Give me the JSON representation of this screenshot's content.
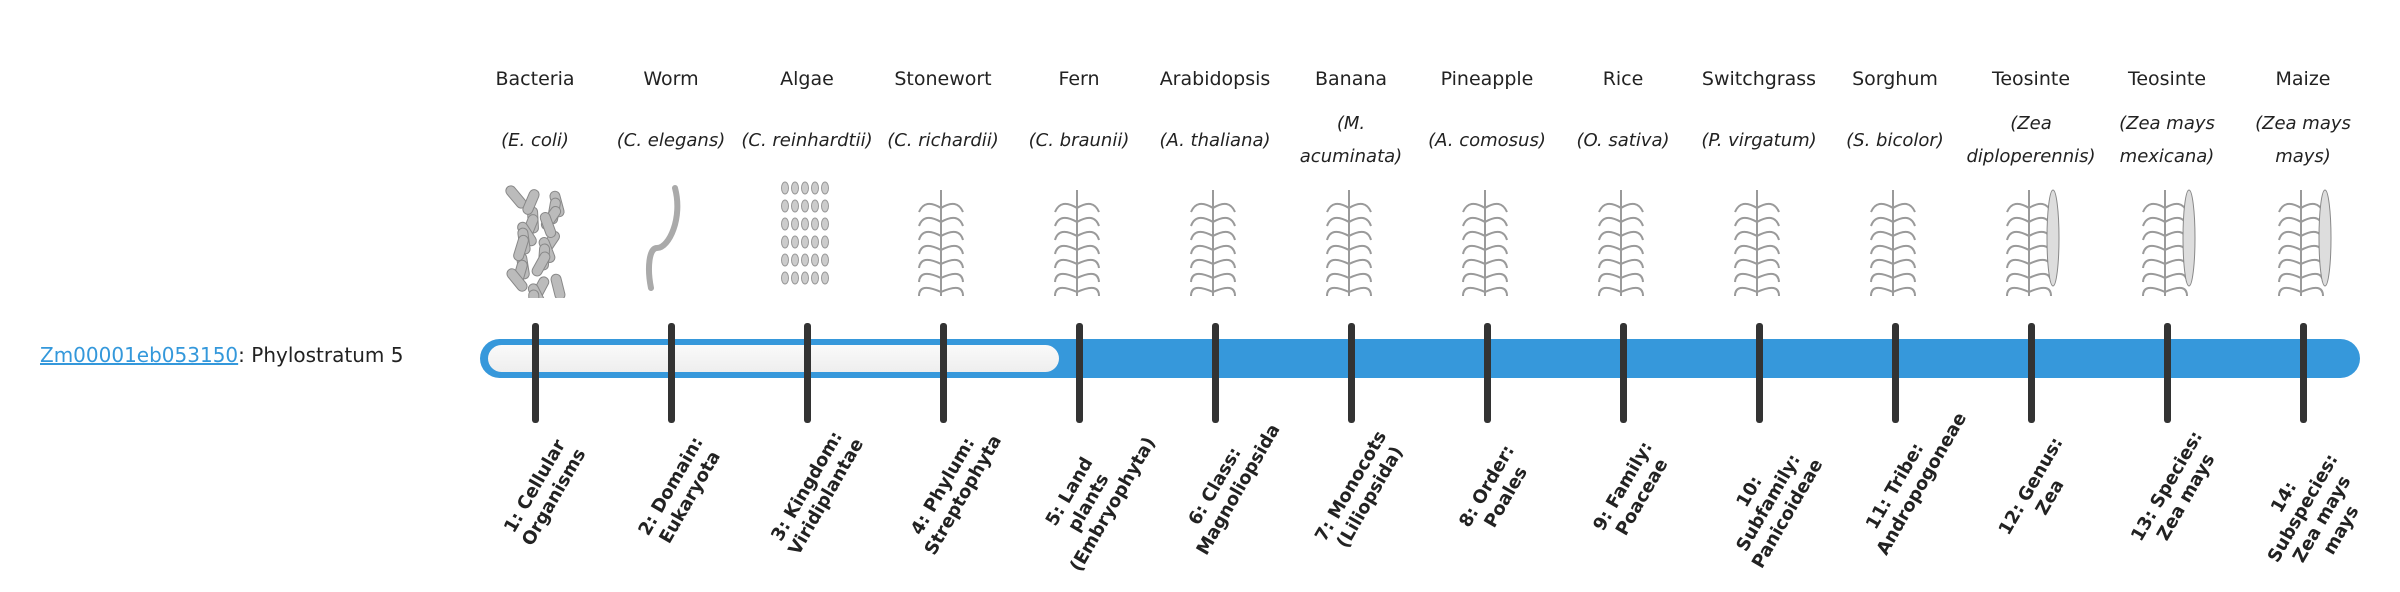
{
  "gene": {
    "id": "Zm00001eb053150",
    "phylostratum": ": Phylostratum 5"
  },
  "progress": {
    "value": 5,
    "max": 14,
    "accent": "#3698db"
  },
  "strata": [
    {
      "name": "Bacteria",
      "species": "(E. coli)",
      "icon": "bacteria-icon",
      "label": "1: Cellular Organisms"
    },
    {
      "name": "Worm",
      "species": "(C. elegans)",
      "icon": "worm-icon",
      "label": "2: Domain: Eukaryota"
    },
    {
      "name": "Algae",
      "species": "(C. reinhardtii)",
      "icon": "algae-icon",
      "label": "3: Kingdom: Viridiplantae"
    },
    {
      "name": "Stonewort",
      "species": "(C. richardii)",
      "icon": "stonewort-icon",
      "label": "4: Phylum: Streptophyta"
    },
    {
      "name": "Fern",
      "species": "(C. braunii)",
      "icon": "fern-icon",
      "label": "5: Land plants (Embryophyta)"
    },
    {
      "name": "Arabidopsis",
      "species": "(A. thaliana)",
      "icon": "arabidopsis-icon",
      "label": "6: Class: Magnoliopsida"
    },
    {
      "name": "Banana",
      "species": "(M. acuminata)",
      "icon": "banana-icon",
      "label": "7: Monocots (Liliopsida)"
    },
    {
      "name": "Pineapple",
      "species": "(A. comosus)",
      "icon": "pineapple-icon",
      "label": "8: Order: Poales"
    },
    {
      "name": "Rice",
      "species": "(O. sativa)",
      "icon": "rice-icon",
      "label": "9: Family: Poaceae"
    },
    {
      "name": "Switchgrass",
      "species": "(P. virgatum)",
      "icon": "switchgrass-icon",
      "label": "10: Subfamily: Panicoideae"
    },
    {
      "name": "Sorghum",
      "species": "(S. bicolor)",
      "icon": "sorghum-icon",
      "label": "11: Tribe: Andropogoneae"
    },
    {
      "name": "Teosinte",
      "species": "(Zea diploperennis)",
      "icon": "teosinte-icon",
      "label": "12: Genus: Zea"
    },
    {
      "name": "Teosinte",
      "species": "(Zea mays mexicana)",
      "icon": "teosinte-icon",
      "label": "13: Species: Zea mays"
    },
    {
      "name": "Maize",
      "species": "(Zea mays mays)",
      "icon": "maize-icon",
      "label": "14: Subspecies: Zea mays mays"
    }
  ]
}
